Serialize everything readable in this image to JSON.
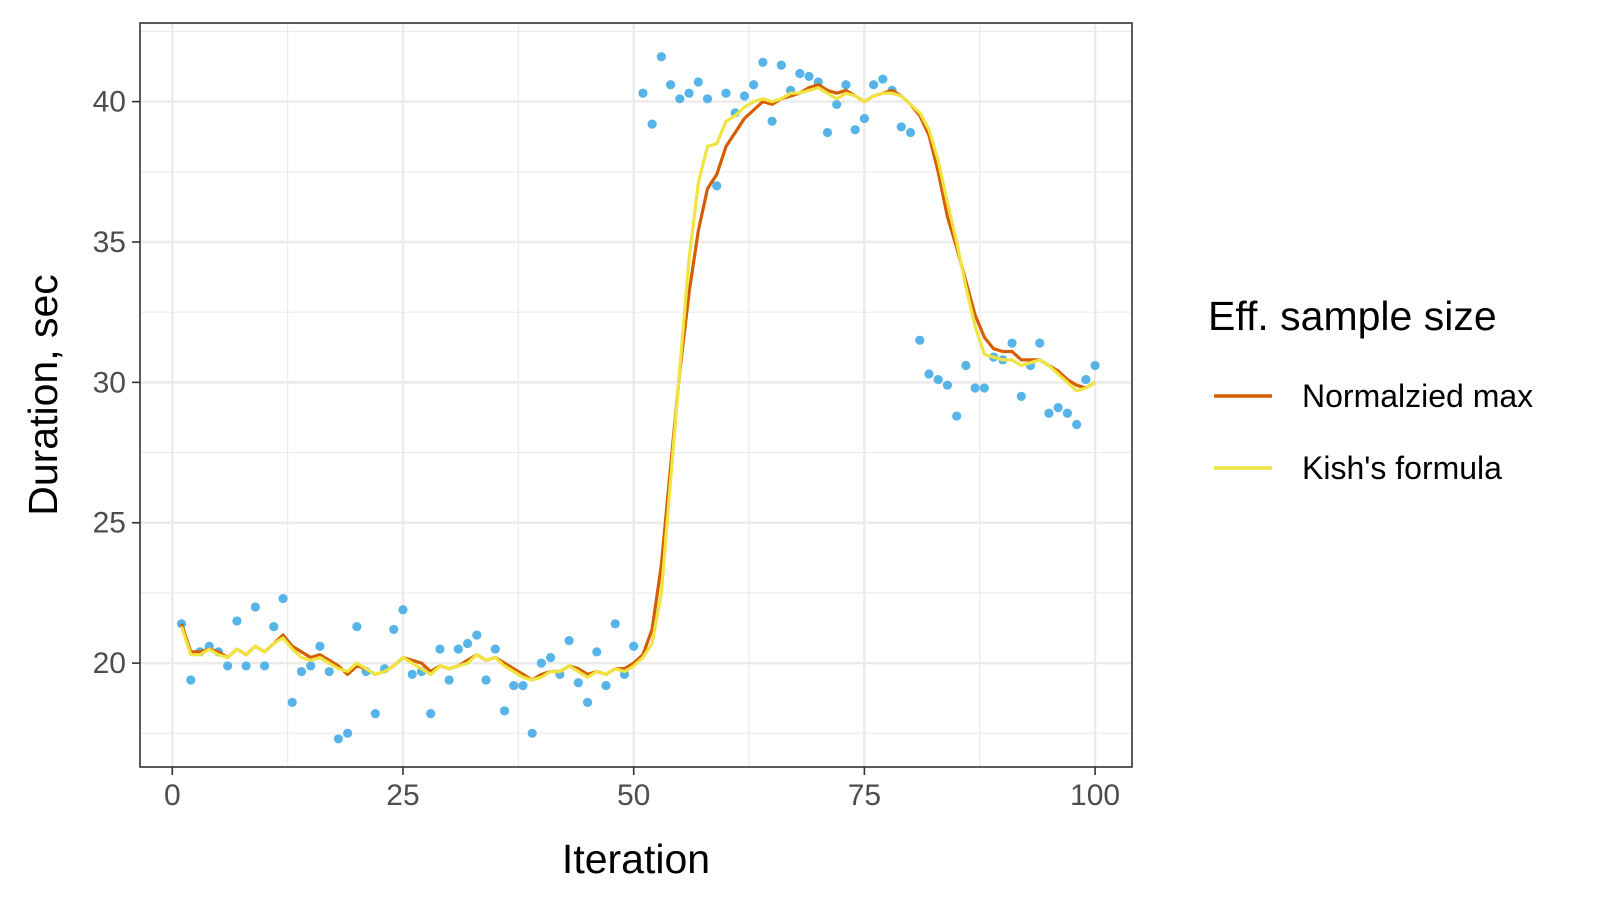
{
  "chart_data": {
    "type": "line",
    "xlabel": "Iteration",
    "ylabel": "Duration, sec",
    "xlim": [
      -3.5,
      104
    ],
    "ylim": [
      16.3,
      42.8
    ],
    "x_ticks": [
      0,
      25,
      50,
      75,
      100
    ],
    "x_tick_labels": [
      "0",
      "25",
      "50",
      "75",
      "100"
    ],
    "y_ticks": [
      20,
      25,
      30,
      35,
      40
    ],
    "y_tick_labels": [
      "20",
      "25",
      "30",
      "35",
      "40"
    ],
    "x_minor_ticks": [
      12.5,
      37.5,
      62.5,
      87.5
    ],
    "y_minor_ticks": [
      17.5,
      22.5,
      27.5,
      32.5,
      37.5,
      42.5
    ],
    "grid": true,
    "legend": {
      "title": "Eff. sample size",
      "position": "right",
      "entries": [
        {
          "label": "Normalzied max",
          "color": "#d55e00"
        },
        {
          "label": "Kish's formula",
          "color": "#f0e442"
        }
      ]
    },
    "points": {
      "color": "#56b4e9",
      "x": [
        1,
        2,
        3,
        4,
        5,
        6,
        7,
        8,
        9,
        10,
        11,
        12,
        13,
        14,
        15,
        16,
        17,
        18,
        19,
        20,
        21,
        22,
        23,
        24,
        25,
        26,
        27,
        28,
        29,
        30,
        31,
        32,
        33,
        34,
        35,
        36,
        37,
        38,
        39,
        40,
        41,
        42,
        43,
        44,
        45,
        46,
        47,
        48,
        49,
        50,
        51,
        52,
        53,
        54,
        55,
        56,
        57,
        58,
        59,
        60,
        61,
        62,
        63,
        64,
        65,
        66,
        67,
        68,
        69,
        70,
        71,
        72,
        73,
        74,
        75,
        76,
        77,
        78,
        79,
        80,
        81,
        82,
        83,
        84,
        85,
        86,
        87,
        88,
        89,
        90,
        91,
        92,
        93,
        94,
        95,
        96,
        97,
        98,
        99,
        100
      ],
      "y": [
        21.4,
        19.4,
        20.4,
        20.6,
        20.4,
        19.9,
        21.5,
        19.9,
        22.0,
        19.9,
        21.3,
        22.3,
        18.6,
        19.7,
        19.9,
        20.6,
        19.7,
        17.3,
        17.5,
        21.3,
        19.7,
        18.2,
        19.8,
        21.2,
        21.9,
        19.6,
        19.7,
        18.2,
        20.5,
        19.4,
        20.5,
        20.7,
        21.0,
        19.4,
        20.5,
        18.3,
        19.2,
        19.2,
        17.5,
        20.0,
        20.2,
        19.6,
        20.8,
        19.3,
        18.6,
        20.4,
        19.2,
        21.4,
        19.6,
        20.6,
        40.3,
        39.2,
        41.6,
        40.6,
        40.1,
        40.3,
        40.7,
        40.1,
        37.0,
        40.3,
        39.6,
        40.2,
        40.6,
        41.4,
        39.3,
        41.3,
        40.4,
        41.0,
        40.9,
        40.7,
        38.9,
        39.9,
        40.6,
        39.0,
        39.4,
        40.6,
        40.8,
        40.4,
        39.1,
        38.9,
        31.5,
        30.3,
        30.1,
        29.9,
        28.8,
        30.6,
        29.8,
        29.8,
        30.9,
        30.8,
        31.4,
        29.5,
        30.6,
        31.4,
        28.9,
        29.1,
        28.9,
        28.5,
        30.1,
        30.6
      ]
    },
    "series": [
      {
        "name": "Normalzied max",
        "color": "#d55e00",
        "x": [
          1,
          2,
          3,
          4,
          5,
          6,
          7,
          8,
          9,
          10,
          11,
          12,
          13,
          14,
          15,
          16,
          17,
          18,
          19,
          20,
          21,
          22,
          23,
          24,
          25,
          26,
          27,
          28,
          29,
          30,
          31,
          32,
          33,
          34,
          35,
          36,
          37,
          38,
          39,
          40,
          41,
          42,
          43,
          44,
          45,
          46,
          47,
          48,
          49,
          50,
          51,
          52,
          53,
          54,
          55,
          56,
          57,
          58,
          59,
          60,
          61,
          62,
          63,
          64,
          65,
          66,
          67,
          68,
          69,
          70,
          71,
          72,
          73,
          74,
          75,
          76,
          77,
          78,
          79,
          80,
          81,
          82,
          83,
          84,
          85,
          86,
          87,
          88,
          89,
          90,
          91,
          92,
          93,
          94,
          95,
          96,
          97,
          98,
          99,
          100
        ],
        "values": [
          21.4,
          20.4,
          20.4,
          20.5,
          20.4,
          20.2,
          20.5,
          20.3,
          20.6,
          20.4,
          20.7,
          21.0,
          20.6,
          20.4,
          20.2,
          20.3,
          20.1,
          19.9,
          19.6,
          19.9,
          19.8,
          19.6,
          19.7,
          19.9,
          20.2,
          20.1,
          20.0,
          19.7,
          19.9,
          19.8,
          19.9,
          20.1,
          20.3,
          20.1,
          20.2,
          20.0,
          19.8,
          19.6,
          19.4,
          19.6,
          19.7,
          19.7,
          19.9,
          19.8,
          19.6,
          19.7,
          19.6,
          19.8,
          19.8,
          20.0,
          20.3,
          21.2,
          23.5,
          27.0,
          30.4,
          33.2,
          35.4,
          36.9,
          37.4,
          38.4,
          38.9,
          39.4,
          39.7,
          40.0,
          39.9,
          40.1,
          40.2,
          40.3,
          40.5,
          40.6,
          40.4,
          40.3,
          40.4,
          40.2,
          40.0,
          40.2,
          40.3,
          40.4,
          40.2,
          39.9,
          39.5,
          38.8,
          37.5,
          35.9,
          34.8,
          33.6,
          32.4,
          31.6,
          31.2,
          31.1,
          31.1,
          30.8,
          30.8,
          30.8,
          30.6,
          30.4,
          30.1,
          29.9,
          29.8,
          30.0
        ]
      },
      {
        "name": "Kish's formula",
        "color": "#f0e442",
        "x": [
          1,
          2,
          3,
          4,
          5,
          6,
          7,
          8,
          9,
          10,
          11,
          12,
          13,
          14,
          15,
          16,
          17,
          18,
          19,
          20,
          21,
          22,
          23,
          24,
          25,
          26,
          27,
          28,
          29,
          30,
          31,
          32,
          33,
          34,
          35,
          36,
          37,
          38,
          39,
          40,
          41,
          42,
          43,
          44,
          45,
          46,
          47,
          48,
          49,
          50,
          51,
          52,
          53,
          54,
          55,
          56,
          57,
          58,
          59,
          60,
          61,
          62,
          63,
          64,
          65,
          66,
          67,
          68,
          69,
          70,
          71,
          72,
          73,
          74,
          75,
          76,
          77,
          78,
          79,
          80,
          81,
          82,
          83,
          84,
          85,
          86,
          87,
          88,
          89,
          90,
          91,
          92,
          93,
          94,
          95,
          96,
          97,
          98,
          99,
          100
        ],
        "values": [
          21.3,
          20.3,
          20.3,
          20.5,
          20.3,
          20.2,
          20.5,
          20.3,
          20.6,
          20.4,
          20.7,
          20.9,
          20.5,
          20.2,
          20.1,
          20.2,
          20.0,
          19.8,
          19.7,
          20.0,
          19.8,
          19.6,
          19.7,
          19.9,
          20.2,
          20.0,
          19.8,
          19.6,
          19.9,
          19.8,
          19.9,
          20.0,
          20.3,
          20.1,
          20.2,
          19.9,
          19.7,
          19.5,
          19.4,
          19.5,
          19.7,
          19.7,
          19.9,
          19.7,
          19.5,
          19.7,
          19.6,
          19.8,
          19.7,
          19.9,
          20.2,
          20.7,
          22.5,
          26.5,
          30.5,
          34.4,
          37.1,
          38.4,
          38.5,
          39.3,
          39.5,
          39.8,
          40.0,
          40.1,
          40.0,
          40.1,
          40.3,
          40.3,
          40.4,
          40.5,
          40.3,
          40.1,
          40.3,
          40.2,
          40.0,
          40.2,
          40.3,
          40.3,
          40.2,
          39.9,
          39.6,
          39.0,
          37.9,
          36.4,
          35.0,
          33.4,
          32.0,
          31.0,
          30.9,
          30.8,
          30.8,
          30.6,
          30.7,
          30.8,
          30.6,
          30.3,
          30.0,
          29.7,
          29.8,
          30.0
        ]
      }
    ]
  }
}
